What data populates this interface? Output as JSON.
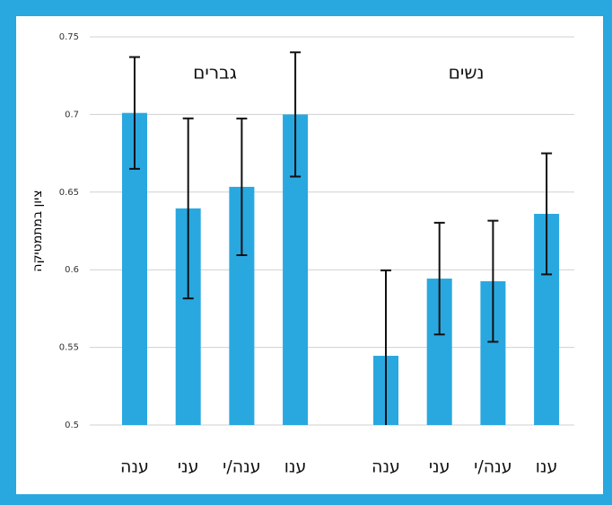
{
  "chart_data": {
    "type": "bar",
    "y_label": "ציון במתמטיקה",
    "color": "#29a8e0",
    "groups": [
      {
        "name": "גברים",
        "categories": [
          "ענה",
          "עני",
          "ענה/י",
          "ענו"
        ],
        "values": [
          0.701,
          0.6395,
          0.6534,
          0.7
        ],
        "errors": [
          0.036,
          0.058,
          0.044,
          0.04
        ]
      },
      {
        "name": "נשים",
        "categories": [
          "ענה",
          "עני",
          "ענה/י",
          "ענו"
        ],
        "values": [
          0.5446,
          0.5943,
          0.5926,
          0.636
        ],
        "errors": [
          0.055,
          0.036,
          0.039,
          0.039
        ]
      }
    ],
    "ylim": [
      0.5,
      0.75
    ],
    "yticks": [
      0.5,
      0.55,
      0.6,
      0.65,
      0.7,
      0.75
    ],
    "grid": true
  }
}
